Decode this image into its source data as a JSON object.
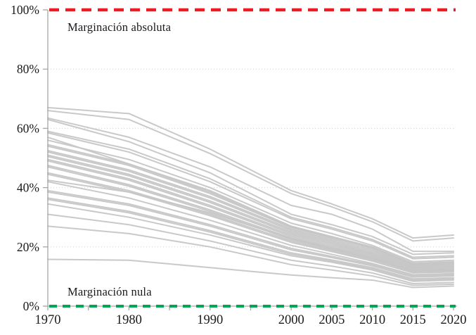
{
  "chart_data": {
    "type": "line",
    "title": "",
    "xlabel": "",
    "ylabel": "",
    "x": [
      1970,
      1980,
      1990,
      2000,
      2005,
      2010,
      2015,
      2020
    ],
    "x_tick_labels": [
      "1970",
      "1980",
      "1990",
      "2000",
      "2005",
      "2010",
      "2015",
      "2020"
    ],
    "x_minor_tick_step_years": 5,
    "x_range": [
      1970,
      2020
    ],
    "y_axis": {
      "min": 0,
      "max": 100,
      "tick_interval": 20,
      "tick_values": [
        0,
        20,
        40,
        60,
        80,
        100
      ],
      "tick_labels": [
        "0%",
        "20%",
        "40%",
        "60%",
        "80%",
        "100%"
      ]
    },
    "grid": "horizontal-dotted",
    "legend": "none",
    "reference_lines": [
      {
        "value": 100,
        "label": "Marginación absoluta",
        "color": "#ED1C24",
        "style": "dashed"
      },
      {
        "value": 0,
        "label": "Marginación nula",
        "color": "#00A651",
        "style": "dashed"
      }
    ],
    "series_color": "#C6C6C6",
    "series": [
      {
        "name": "line-01",
        "values": [
          67,
          65,
          53,
          39,
          34.5,
          29.5,
          23,
          24
        ]
      },
      {
        "name": "line-02",
        "values": [
          66,
          63,
          51.5,
          38,
          33.5,
          28.5,
          22,
          23
        ]
      },
      {
        "name": "line-03",
        "values": [
          63.5,
          57,
          47,
          34,
          31,
          26,
          18.5,
          18.5
        ]
      },
      {
        "name": "line-04",
        "values": [
          63,
          55.5,
          45,
          31,
          27.5,
          23.5,
          17.5,
          18
        ]
      },
      {
        "name": "line-05",
        "values": [
          59,
          53,
          43,
          30,
          26.5,
          22.5,
          16.5,
          17
        ]
      },
      {
        "name": "line-06",
        "values": [
          58.5,
          52,
          42,
          29.5,
          26,
          22,
          16,
          16.5
        ]
      },
      {
        "name": "line-07",
        "values": [
          57,
          48,
          38.5,
          26.8,
          23.2,
          19.8,
          14.2,
          14.8
        ]
      },
      {
        "name": "line-08",
        "values": [
          56,
          49.5,
          40,
          28,
          24.5,
          20.5,
          15,
          15.5
        ]
      },
      {
        "name": "line-09",
        "values": [
          54.5,
          48,
          39,
          27,
          23.5,
          20,
          14.5,
          15
        ]
      },
      {
        "name": "line-10",
        "values": [
          54,
          47.5,
          38,
          26.5,
          23,
          19.5,
          14,
          14.5
        ]
      },
      {
        "name": "line-11",
        "values": [
          52.5,
          46,
          37,
          26,
          22.5,
          19,
          13.8,
          14.2
        ]
      },
      {
        "name": "line-12",
        "values": [
          52,
          45.5,
          36.5,
          25.5,
          22,
          18.5,
          13.5,
          14
        ]
      },
      {
        "name": "line-13",
        "values": [
          51,
          44.5,
          35.5,
          25,
          21.5,
          18,
          13.2,
          13.6
        ]
      },
      {
        "name": "line-14",
        "values": [
          50.5,
          44,
          35,
          24.5,
          21,
          17.6,
          13,
          13.3
        ]
      },
      {
        "name": "line-15",
        "values": [
          49.5,
          43,
          34,
          24,
          20.5,
          17.2,
          12.7,
          13
        ]
      },
      {
        "name": "line-16",
        "values": [
          49,
          42.5,
          33.5,
          23.5,
          20,
          16.8,
          12.4,
          12.7
        ]
      },
      {
        "name": "line-17",
        "values": [
          47.5,
          41,
          32.5,
          23,
          19.6,
          16.4,
          12.1,
          12.4
        ]
      },
      {
        "name": "line-18",
        "values": [
          47,
          40.5,
          32,
          22.5,
          19.2,
          16,
          11.8,
          12.1
        ]
      },
      {
        "name": "line-19",
        "values": [
          45,
          39,
          31,
          22,
          18.8,
          15.6,
          11.5,
          11.8
        ]
      },
      {
        "name": "line-20",
        "values": [
          44.5,
          38.5,
          30.5,
          21.5,
          18.4,
          15.2,
          11.2,
          11.5
        ]
      },
      {
        "name": "line-21",
        "values": [
          42.5,
          38.5,
          31.5,
          22.8,
          19.4,
          16.2,
          11.9,
          12.2
        ]
      },
      {
        "name": "line-22",
        "values": [
          42,
          36.5,
          29,
          20.5,
          17.5,
          14.4,
          10.6,
          11
        ]
      },
      {
        "name": "line-23",
        "values": [
          39,
          34.5,
          27.5,
          19.5,
          16.8,
          14,
          10.2,
          10.6
        ]
      },
      {
        "name": "line-24",
        "values": [
          38.5,
          34,
          27,
          19,
          16.4,
          13.6,
          9.8,
          10.2
        ]
      },
      {
        "name": "line-25",
        "values": [
          36.5,
          32,
          25.5,
          18,
          15.6,
          13,
          9.2,
          9.6
        ]
      },
      {
        "name": "line-26",
        "values": [
          36,
          31.5,
          25,
          17.5,
          15.2,
          12.6,
          8.8,
          9.2
        ]
      },
      {
        "name": "line-27",
        "values": [
          34.5,
          30,
          24,
          17,
          14.8,
          12.2,
          8.4,
          8.8
        ]
      },
      {
        "name": "line-28",
        "values": [
          31,
          27.5,
          22,
          15.5,
          13.5,
          11.2,
          7.6,
          8
        ]
      },
      {
        "name": "line-29",
        "values": [
          27,
          24.5,
          20,
          14,
          12.2,
          10.2,
          7,
          7.4
        ]
      },
      {
        "name": "line-30",
        "values": [
          15.8,
          15.5,
          13,
          10.5,
          9.6,
          8.8,
          6.3,
          6.8
        ]
      }
    ]
  },
  "colors": {
    "background": "#FFFFFF",
    "series": "#C6C6C6",
    "grid": "#D0D0D0",
    "axis": "#A6A6A6",
    "text": "#1A1A1A",
    "reference_absoluta": "#ED1C24",
    "reference_nula": "#00A651"
  }
}
